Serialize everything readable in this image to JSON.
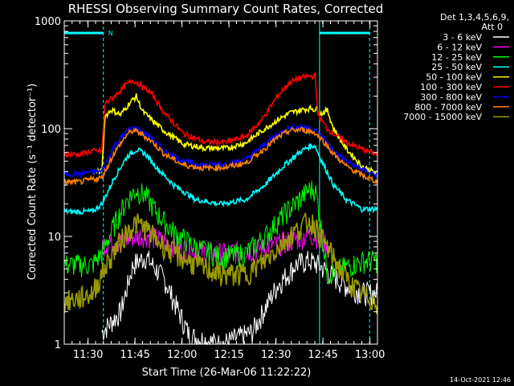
{
  "chart_data": {
    "type": "line",
    "title": "RHESSI Observing Summary Count Rates, Corrected",
    "xlabel": "Start Time (26-Mar-06 11:22:22)",
    "ylabel": "Corrected Count Rate (s⁻¹ detector⁻¹)",
    "yscale": "log",
    "xlim_minutes": [
      0,
      100
    ],
    "ylim": [
      1,
      1000
    ],
    "x_ticks": [
      {
        "label": "11:30",
        "t": 7.6
      },
      {
        "label": "11:45",
        "t": 22.6
      },
      {
        "label": "12:00",
        "t": 37.6
      },
      {
        "label": "12:15",
        "t": 52.6
      },
      {
        "label": "12:30",
        "t": 67.6
      },
      {
        "label": "12:45",
        "t": 82.6
      },
      {
        "label": "13:00",
        "t": 97.6
      }
    ],
    "y_ticks": [
      {
        "label": "1",
        "v": 1
      },
      {
        "label": "10",
        "v": 10
      },
      {
        "label": "100",
        "v": 100
      },
      {
        "label": "1000",
        "v": 1000
      }
    ],
    "legend_header": [
      "Det 1,3,4,5,6,9,",
      "Att 0"
    ],
    "legend_position": "right",
    "series": [
      {
        "name": "3 - 6 keV",
        "color": "#ffffff",
        "day_x": [
          12,
          18,
          22,
          26,
          32,
          40,
          50,
          60,
          68,
          74,
          78,
          81,
          85,
          90,
          95,
          100
        ],
        "day_y": [
          1.3,
          2.0,
          5.5,
          6.5,
          4.0,
          1.2,
          1.0,
          1.3,
          3.5,
          5.5,
          6.0,
          5.5,
          4.5,
          3.5,
          3.0,
          3.0
        ]
      },
      {
        "name": "6 - 12 keV",
        "color": "#ff00ff",
        "day_x": [
          12,
          18,
          22,
          26,
          32,
          40,
          50,
          60,
          68,
          74,
          78,
          81,
          84
        ],
        "day_y": [
          8.5,
          9.0,
          10.0,
          10.5,
          9.0,
          7.5,
          7.0,
          7.5,
          8.5,
          9.5,
          10.5,
          10.0,
          8.5
        ]
      },
      {
        "name": "12 - 25 keV",
        "color": "#00ff00",
        "day_x": [
          0,
          5,
          9,
          12,
          16,
          20,
          23,
          26,
          30,
          35,
          42,
          50,
          58,
          64,
          70,
          75,
          78,
          80,
          81,
          84,
          88,
          92,
          96,
          100
        ],
        "day_y": [
          5.5,
          5.5,
          5.5,
          7,
          13,
          22,
          27,
          24,
          16,
          11,
          8,
          6.5,
          7,
          10,
          16,
          22,
          27,
          28,
          20,
          4.5,
          5,
          5.5,
          6,
          6
        ]
      },
      {
        "name": "25 - 50 keV",
        "color": "#00ffff",
        "day_x": [
          0,
          5,
          9,
          12,
          16,
          20,
          23,
          26,
          30,
          35,
          42,
          50,
          58,
          64,
          70,
          75,
          78,
          80,
          81,
          83,
          86,
          90,
          95,
          100
        ],
        "day_y": [
          17,
          17,
          17,
          20,
          35,
          55,
          64,
          58,
          42,
          30,
          22,
          20,
          22,
          30,
          45,
          60,
          68,
          70,
          60,
          45,
          30,
          22,
          18,
          18
        ]
      },
      {
        "name": "50 - 100 keV",
        "color": "#ffff00",
        "day_x": [
          9,
          12,
          13,
          15,
          18,
          21,
          23,
          25,
          28,
          32,
          38,
          45,
          52,
          58,
          63,
          68,
          72,
          76,
          79,
          80,
          81,
          82,
          84,
          86,
          90,
          95,
          100
        ],
        "day_y": [
          40,
          40,
          130,
          150,
          135,
          175,
          200,
          145,
          120,
          95,
          72,
          66,
          66,
          74,
          95,
          120,
          140,
          150,
          155,
          150,
          150,
          138,
          148,
          100,
          65,
          45,
          38
        ]
      },
      {
        "name": "100 - 300 keV",
        "color": "#ff0000",
        "day_x": [
          0,
          5,
          9,
          12,
          13,
          16,
          20,
          22,
          24,
          28,
          32,
          38,
          45,
          52,
          58,
          63,
          68,
          72,
          76,
          80,
          81,
          82,
          84,
          86,
          90,
          95,
          100
        ],
        "day_y": [
          58,
          58,
          62,
          62,
          170,
          200,
          260,
          280,
          260,
          210,
          140,
          90,
          75,
          75,
          85,
          120,
          200,
          270,
          300,
          310,
          140,
          120,
          100,
          90,
          75,
          65,
          58
        ]
      },
      {
        "name": "300 - 800 keV",
        "color": "#0000ff",
        "day_x": [
          0,
          5,
          9,
          12,
          16,
          20,
          22,
          24,
          28,
          32,
          38,
          45,
          52,
          58,
          63,
          68,
          72,
          76,
          80,
          83,
          86,
          90,
          95,
          100
        ],
        "day_y": [
          38,
          38,
          40,
          40,
          70,
          95,
          102,
          98,
          82,
          62,
          50,
          46,
          47,
          52,
          68,
          88,
          102,
          105,
          98,
          80,
          62,
          50,
          42,
          37
        ]
      },
      {
        "name": "800 - 7000 keV",
        "color": "#ff8000",
        "day_x": [
          0,
          5,
          9,
          12,
          16,
          20,
          22,
          24,
          28,
          32,
          38,
          45,
          52,
          58,
          63,
          68,
          72,
          76,
          80,
          83,
          86,
          90,
          95,
          100
        ],
        "day_y": [
          32,
          32,
          34,
          35,
          60,
          88,
          96,
          92,
          76,
          58,
          46,
          43,
          44,
          48,
          62,
          82,
          96,
          98,
          92,
          75,
          58,
          45,
          37,
          32
        ]
      },
      {
        "name": "7000 - 15000 keV",
        "color": "#999900",
        "day_x": [
          0,
          5,
          9,
          12,
          16,
          20,
          23,
          26,
          30,
          35,
          42,
          50,
          58,
          64,
          70,
          75,
          78,
          80,
          81,
          84,
          88,
          92,
          96,
          100
        ],
        "day_y": [
          2.5,
          2.7,
          3.0,
          4.5,
          7.5,
          11,
          13.5,
          12,
          9,
          7,
          5.5,
          4.5,
          4.5,
          6,
          9,
          12,
          14,
          13,
          11,
          8,
          5,
          3.5,
          2.8,
          2.5
        ]
      }
    ],
    "spacecraft_night_intervals_minutes": [
      [
        0,
        12.5
      ],
      [
        81.5,
        97.5
      ]
    ],
    "saa_markers": [
      "N"
    ],
    "grid": false
  },
  "footer": {
    "date_stamp": "14-Oct-2021 12:46"
  }
}
